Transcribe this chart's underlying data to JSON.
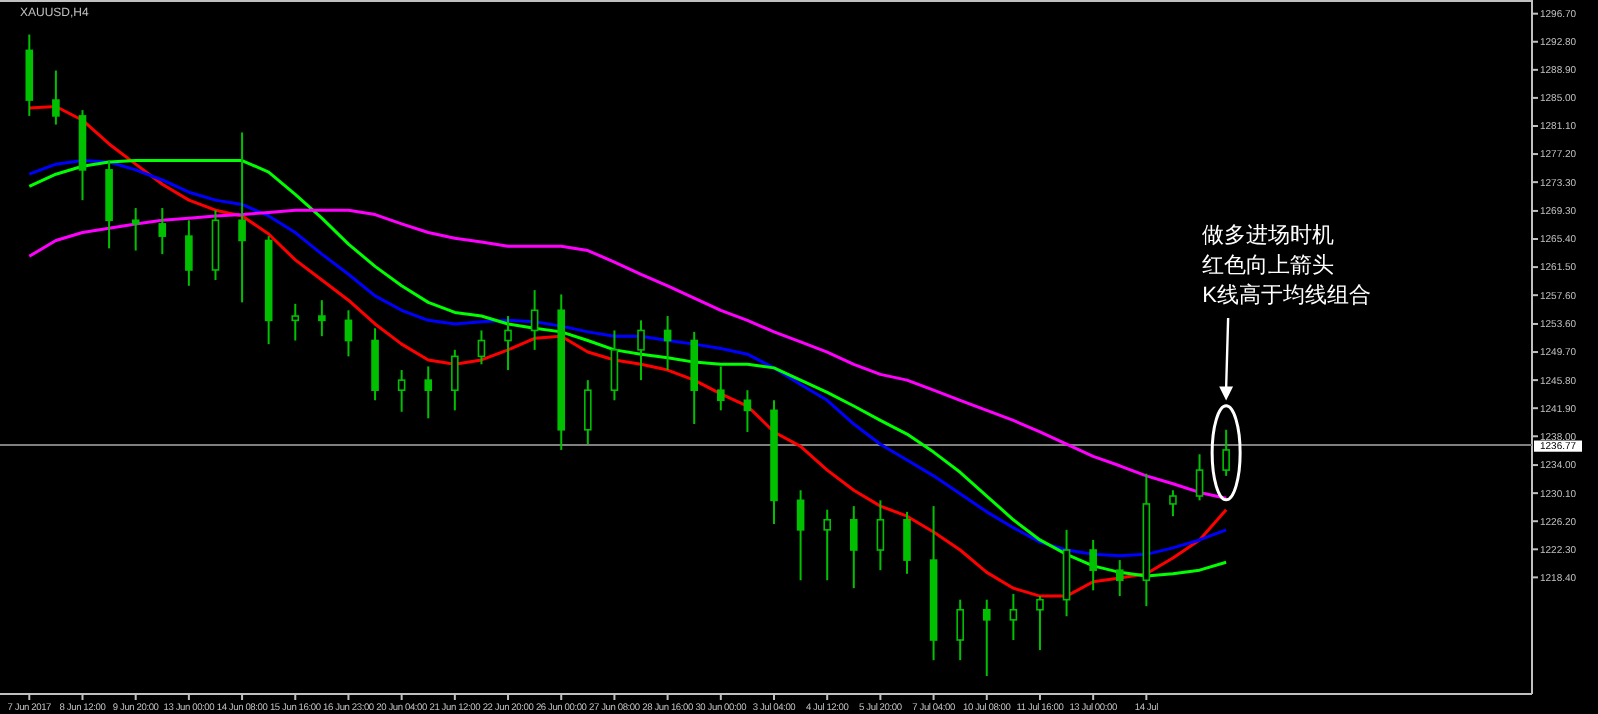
{
  "chart_data": {
    "type": "candlestick",
    "title": "XAUUSD,H4",
    "categories": [
      "7 Jun 2017",
      null,
      "8 Jun 12:00",
      null,
      "9 Jun 20:00",
      null,
      "13 Jun 00:00",
      null,
      "14 Jun 08:00",
      null,
      "15 Jun 16:00",
      null,
      "16 Jun 23:00",
      null,
      "20 Jun 04:00",
      null,
      "21 Jun 12:00",
      null,
      "22 Jun 20:00",
      null,
      "26 Jun 00:00",
      null,
      "27 Jun 08:00",
      null,
      "28 Jun 16:00",
      null,
      "30 Jun 00:00",
      null,
      "3 Jul 04:00",
      null,
      "4 Jul 12:00",
      null,
      "5 Jul 20:00",
      null,
      "7 Jul 04:00",
      null,
      "10 Jul 08:00",
      null,
      "11 Jul 16:00",
      null,
      "13 Jul 00:00",
      null,
      "14 Jul",
      null,
      null,
      null,
      null,
      null,
      null,
      null,
      null,
      null,
      null,
      null,
      null,
      null,
      null
    ],
    "color": "#00c000",
    "ohlc": [
      [
        1291.6,
        1293.8,
        1282.5,
        1284.7
      ],
      [
        1284.7,
        1288.8,
        1281.3,
        1282.5
      ],
      [
        1282.5,
        1283.3,
        1270.8,
        1275.0
      ],
      [
        1275.0,
        1276.3,
        1264.1,
        1268.0
      ],
      [
        1268.0,
        1269.7,
        1263.8,
        1267.5
      ],
      [
        1267.5,
        1269.7,
        1263.3,
        1265.8
      ],
      [
        1265.8,
        1268.0,
        1258.9,
        1261.1
      ],
      [
        1261.1,
        1269.4,
        1259.7,
        1268.0
      ],
      [
        1268.0,
        1280.2,
        1256.6,
        1265.2
      ],
      [
        1265.2,
        1265.8,
        1250.8,
        1254.1
      ],
      [
        1254.1,
        1256.4,
        1251.3,
        1254.7
      ],
      [
        1254.7,
        1256.9,
        1251.9,
        1254.1
      ],
      [
        1254.1,
        1255.5,
        1249.1,
        1251.3
      ],
      [
        1251.3,
        1253.0,
        1243.0,
        1244.4
      ],
      [
        1244.4,
        1247.2,
        1241.4,
        1245.8
      ],
      [
        1245.8,
        1247.7,
        1240.5,
        1244.4
      ],
      [
        1244.4,
        1250.0,
        1241.6,
        1249.1
      ],
      [
        1249.1,
        1252.7,
        1248.0,
        1251.3
      ],
      [
        1251.3,
        1254.7,
        1247.2,
        1252.7
      ],
      [
        1252.7,
        1258.3,
        1250.0,
        1255.5
      ],
      [
        1255.5,
        1257.7,
        1236.1,
        1238.9
      ],
      [
        1238.9,
        1245.8,
        1236.9,
        1244.4
      ],
      [
        1244.4,
        1252.7,
        1243.0,
        1250.0
      ],
      [
        1250.0,
        1254.1,
        1245.8,
        1252.7
      ],
      [
        1252.7,
        1254.7,
        1247.2,
        1251.3
      ],
      [
        1251.3,
        1252.5,
        1239.7,
        1244.4
      ],
      [
        1244.4,
        1247.7,
        1241.6,
        1243.0
      ],
      [
        1243.0,
        1244.4,
        1238.6,
        1241.6
      ],
      [
        1241.6,
        1243.0,
        1225.8,
        1229.1
      ],
      [
        1229.1,
        1230.5,
        1218.0,
        1225.0
      ],
      [
        1225.0,
        1227.8,
        1218.0,
        1226.4
      ],
      [
        1226.4,
        1228.3,
        1216.9,
        1222.2
      ],
      [
        1222.2,
        1229.1,
        1219.4,
        1226.4
      ],
      [
        1226.4,
        1227.5,
        1218.9,
        1220.8
      ],
      [
        1220.8,
        1228.3,
        1206.9,
        1209.7
      ],
      [
        1209.7,
        1215.3,
        1206.9,
        1213.9
      ],
      [
        1213.9,
        1215.3,
        1204.7,
        1212.5
      ],
      [
        1212.5,
        1216.1,
        1209.7,
        1213.9
      ],
      [
        1213.9,
        1215.8,
        1208.3,
        1215.3
      ],
      [
        1215.3,
        1225.0,
        1213.0,
        1222.2
      ],
      [
        1222.2,
        1223.6,
        1216.6,
        1219.4
      ],
      [
        1219.4,
        1220.8,
        1215.8,
        1218.0
      ],
      [
        1218.0,
        1232.8,
        1214.4,
        1228.6
      ],
      [
        1228.6,
        1230.5,
        1226.9,
        1229.7
      ],
      [
        1229.7,
        1235.5,
        1229.1,
        1233.3
      ],
      [
        1233.3,
        1238.9,
        1232.5,
        1236.1
      ],
      null,
      null,
      null,
      null,
      null,
      null,
      null,
      null,
      null,
      null,
      null
    ],
    "series": [
      {
        "type": "line",
        "color": "#ff0000",
        "values": [
          1283.6,
          1283.8,
          1281.9,
          1278.6,
          1275.8,
          1273.0,
          1270.8,
          1269.4,
          1268.6,
          1266.1,
          1262.5,
          1259.7,
          1256.9,
          1253.6,
          1250.8,
          1248.6,
          1248.0,
          1248.6,
          1250.0,
          1251.6,
          1251.9,
          1249.7,
          1248.6,
          1248.0,
          1247.2,
          1245.8,
          1243.9,
          1242.2,
          1238.6,
          1236.6,
          1233.3,
          1230.5,
          1228.3,
          1226.9,
          1224.7,
          1222.2,
          1219.1,
          1216.9,
          1215.8,
          1215.8,
          1217.8,
          1218.3,
          1218.9,
          1221.1,
          1223.6,
          1227.8,
          null,
          null,
          null,
          null,
          null,
          null,
          null,
          null,
          null,
          null,
          null
        ]
      },
      {
        "type": "line",
        "color": "#0000ff",
        "values": [
          1274.4,
          1275.8,
          1276.3,
          1276.1,
          1275.0,
          1273.6,
          1271.9,
          1270.8,
          1270.2,
          1268.6,
          1266.3,
          1263.3,
          1260.5,
          1257.5,
          1255.5,
          1254.1,
          1253.6,
          1253.9,
          1254.1,
          1253.9,
          1253.3,
          1252.5,
          1251.9,
          1251.9,
          1251.3,
          1250.8,
          1250.2,
          1249.4,
          1247.5,
          1245.2,
          1243.0,
          1239.7,
          1236.9,
          1234.7,
          1232.5,
          1230.0,
          1227.5,
          1225.3,
          1223.3,
          1222.2,
          1221.6,
          1221.4,
          1221.6,
          1222.5,
          1223.6,
          1225.0,
          null,
          null,
          null,
          null,
          null,
          null,
          null,
          null,
          null,
          null,
          null
        ]
      },
      {
        "type": "line",
        "color": "#00ff00",
        "values": [
          1272.7,
          1274.4,
          1275.5,
          1276.1,
          1276.3,
          1276.3,
          1276.3,
          1276.3,
          1276.3,
          1274.7,
          1271.6,
          1268.3,
          1264.7,
          1261.6,
          1258.9,
          1256.6,
          1255.2,
          1254.7,
          1253.6,
          1253.0,
          1252.5,
          1251.3,
          1250.0,
          1249.4,
          1248.9,
          1248.3,
          1248.0,
          1248.0,
          1247.5,
          1245.8,
          1244.1,
          1242.2,
          1240.2,
          1238.3,
          1235.8,
          1233.0,
          1229.7,
          1226.4,
          1223.6,
          1221.6,
          1220.0,
          1219.1,
          1218.6,
          1218.9,
          1219.4,
          1220.5,
          null,
          null,
          null,
          null,
          null,
          null,
          null,
          null,
          null,
          null,
          null
        ]
      },
      {
        "type": "line",
        "color": "#ff00ff",
        "values": [
          1263.0,
          1265.2,
          1266.3,
          1266.9,
          1267.5,
          1268.0,
          1268.3,
          1268.6,
          1268.8,
          1269.1,
          1269.4,
          1269.4,
          1269.4,
          1268.8,
          1267.5,
          1266.3,
          1265.5,
          1265.0,
          1264.4,
          1264.4,
          1264.4,
          1263.8,
          1262.2,
          1260.5,
          1258.9,
          1257.2,
          1255.5,
          1254.1,
          1252.5,
          1251.1,
          1249.7,
          1248.0,
          1246.6,
          1245.8,
          1244.4,
          1243.0,
          1241.6,
          1240.2,
          1238.6,
          1236.9,
          1235.2,
          1233.9,
          1232.5,
          1231.4,
          1230.2,
          1229.4,
          null,
          null,
          null,
          null,
          null,
          null,
          null,
          null,
          null,
          null,
          null
        ]
      }
    ],
    "ylim": [
      1202.2,
      1298.6
    ],
    "yticks": [
      {
        "value": 1296.7,
        "label": "1296.70"
      },
      {
        "value": 1292.8,
        "label": "1292.80"
      },
      {
        "value": 1288.9,
        "label": "1288.90"
      },
      {
        "value": 1285.0,
        "label": "1285.00"
      },
      {
        "value": 1281.1,
        "label": "1281.10"
      },
      {
        "value": 1277.2,
        "label": "1277.20"
      },
      {
        "value": 1273.3,
        "label": "1273.30"
      },
      {
        "value": 1269.3,
        "label": "1269.30"
      },
      {
        "value": 1265.4,
        "label": "1265.40"
      },
      {
        "value": 1261.5,
        "label": "1261.50"
      },
      {
        "value": 1257.6,
        "label": "1257.60"
      },
      {
        "value": 1253.6,
        "label": "1253.60"
      },
      {
        "value": 1249.7,
        "label": "1249.70"
      },
      {
        "value": 1245.8,
        "label": "1245.80"
      },
      {
        "value": 1241.9,
        "label": "1241.90"
      },
      {
        "value": 1238.0,
        "label": "1238.00"
      },
      {
        "value": 1234.0,
        "label": "1234.00"
      },
      {
        "value": 1230.1,
        "label": "1230.10"
      },
      {
        "value": 1226.2,
        "label": "1226.20"
      },
      {
        "value": 1222.3,
        "label": "1222.30"
      },
      {
        "value": 1218.4,
        "label": "1218.40"
      }
    ],
    "ref_lines": [
      {
        "axis": "y",
        "value": 1236.77,
        "label": "1236.77",
        "color": "#808080"
      }
    ],
    "annotations": [
      "做多进场时机",
      "红色向上箭头",
      "K线高于均线组合"
    ]
  }
}
